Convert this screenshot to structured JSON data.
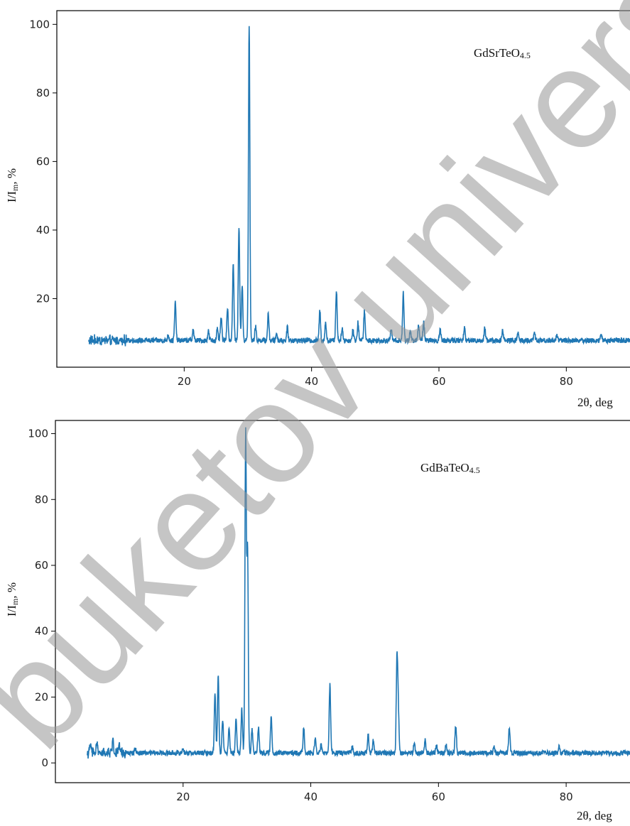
{
  "colors": {
    "line": "#1f77b4",
    "axis": "#000000",
    "text": "#222222",
    "watermark": "#9a9a9a"
  },
  "watermark": "buketov univers",
  "chart_data": [
    {
      "type": "line",
      "title": "GdSrTeO4.5",
      "title_main": "GdSrTeO",
      "title_sub": "4.5",
      "xlabel": "2θ, deg",
      "ylabel_main": "I/I",
      "ylabel_sub": "m",
      "ylabel_tail": ", %",
      "xlim": [
        0,
        90
      ],
      "ylim": [
        0,
        104
      ],
      "xticks": [
        20,
        40,
        60,
        80
      ],
      "yticks": [
        20,
        40,
        60,
        80,
        100
      ],
      "baseline": 7.8,
      "start_x": 5,
      "end_x": 90,
      "peaks": [
        {
          "x": 17.5,
          "y": 9.5
        },
        {
          "x": 18.6,
          "y": 18.8
        },
        {
          "x": 21.4,
          "y": 11
        },
        {
          "x": 23.8,
          "y": 10.5
        },
        {
          "x": 25.2,
          "y": 11
        },
        {
          "x": 25.8,
          "y": 14.5
        },
        {
          "x": 26.8,
          "y": 17.5
        },
        {
          "x": 27.7,
          "y": 30
        },
        {
          "x": 28.6,
          "y": 41
        },
        {
          "x": 29.1,
          "y": 24
        },
        {
          "x": 30.2,
          "y": 100
        },
        {
          "x": 31.2,
          "y": 12
        },
        {
          "x": 33.2,
          "y": 15.5
        },
        {
          "x": 34.5,
          "y": 10
        },
        {
          "x": 36.2,
          "y": 11.5
        },
        {
          "x": 41.3,
          "y": 16.5
        },
        {
          "x": 42.2,
          "y": 13
        },
        {
          "x": 43.9,
          "y": 22.5
        },
        {
          "x": 44.8,
          "y": 11.5
        },
        {
          "x": 46.5,
          "y": 11
        },
        {
          "x": 47.3,
          "y": 13
        },
        {
          "x": 48.3,
          "y": 16.5
        },
        {
          "x": 52.5,
          "y": 11
        },
        {
          "x": 54.4,
          "y": 21.5
        },
        {
          "x": 55.5,
          "y": 10.5
        },
        {
          "x": 56.8,
          "y": 12.5
        },
        {
          "x": 57.6,
          "y": 13
        },
        {
          "x": 60.2,
          "y": 11
        },
        {
          "x": 64.0,
          "y": 11.5
        },
        {
          "x": 67.2,
          "y": 11.5
        },
        {
          "x": 70.0,
          "y": 10.5
        },
        {
          "x": 72.4,
          "y": 10
        },
        {
          "x": 75.0,
          "y": 10
        },
        {
          "x": 78.5,
          "y": 9.5
        },
        {
          "x": 85.5,
          "y": 9.5
        }
      ]
    },
    {
      "type": "line",
      "title": "GdBaTeO4.5",
      "title_main": "GdBaTeO",
      "title_sub": "4.5",
      "xlabel": "2θ, deg",
      "ylabel_main": "I/I",
      "ylabel_sub": "m",
      "ylabel_tail": ", %",
      "xlim": [
        0,
        90
      ],
      "ylim": [
        -6,
        104
      ],
      "xticks": [
        20,
        40,
        60,
        80
      ],
      "yticks": [
        0,
        20,
        40,
        60,
        80,
        100
      ],
      "baseline": 3,
      "start_x": 5,
      "end_x": 90,
      "peaks": [
        {
          "x": 5.5,
          "y": 5.5
        },
        {
          "x": 6.5,
          "y": 6
        },
        {
          "x": 9.0,
          "y": 7
        },
        {
          "x": 10.0,
          "y": 5.5
        },
        {
          "x": 12.5,
          "y": 4.5
        },
        {
          "x": 20.0,
          "y": 4.5
        },
        {
          "x": 25.0,
          "y": 21.5
        },
        {
          "x": 25.5,
          "y": 26.5
        },
        {
          "x": 26.2,
          "y": 13.5
        },
        {
          "x": 27.2,
          "y": 11
        },
        {
          "x": 28.3,
          "y": 13.5
        },
        {
          "x": 29.2,
          "y": 16.5
        },
        {
          "x": 29.8,
          "y": 100
        },
        {
          "x": 30.1,
          "y": 65
        },
        {
          "x": 30.8,
          "y": 10.5
        },
        {
          "x": 31.8,
          "y": 11
        },
        {
          "x": 33.8,
          "y": 14
        },
        {
          "x": 38.9,
          "y": 11
        },
        {
          "x": 40.7,
          "y": 7.5
        },
        {
          "x": 41.6,
          "y": 5.5
        },
        {
          "x": 43.0,
          "y": 24
        },
        {
          "x": 46.5,
          "y": 5
        },
        {
          "x": 49.0,
          "y": 8.5
        },
        {
          "x": 49.8,
          "y": 7
        },
        {
          "x": 53.5,
          "y": 31
        },
        {
          "x": 53.7,
          "y": 16.5
        },
        {
          "x": 56.2,
          "y": 6
        },
        {
          "x": 57.9,
          "y": 7
        },
        {
          "x": 59.7,
          "y": 5.5
        },
        {
          "x": 61.2,
          "y": 5.5
        },
        {
          "x": 62.7,
          "y": 11.5
        },
        {
          "x": 68.7,
          "y": 5
        },
        {
          "x": 71.1,
          "y": 11
        },
        {
          "x": 78.9,
          "y": 5
        }
      ]
    }
  ]
}
